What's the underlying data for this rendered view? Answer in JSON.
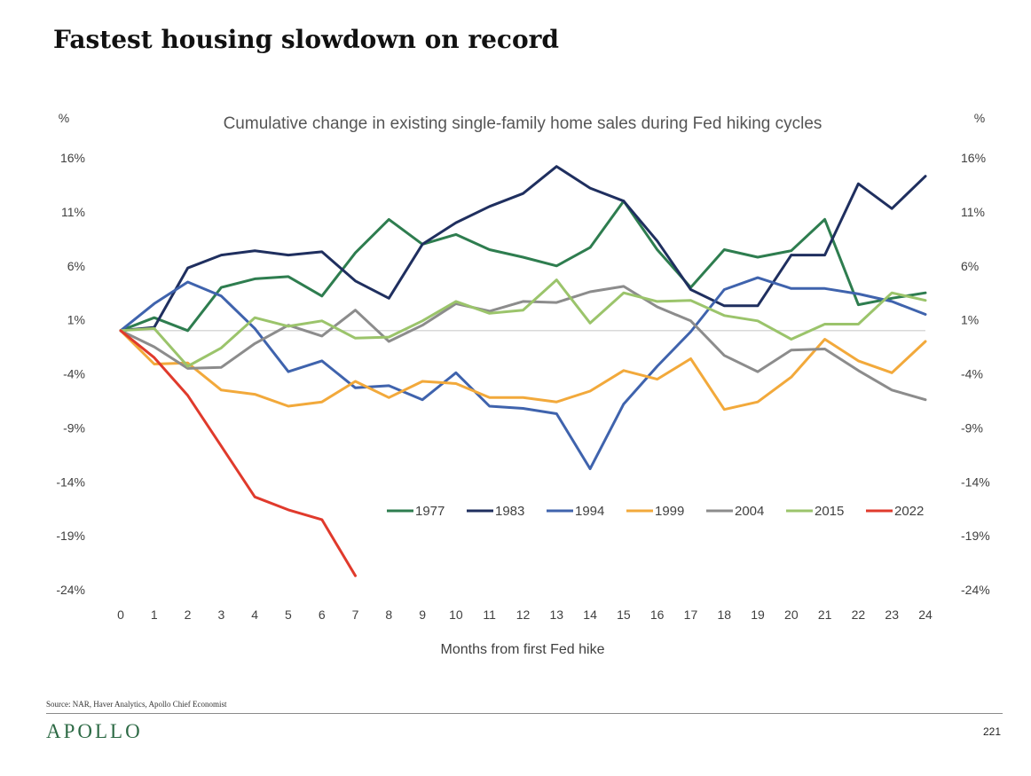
{
  "slide": {
    "title": "Fastest housing slowdown on record",
    "source": "Source: NAR, Haver Analytics, Apollo Chief Economist",
    "brand": "APOLLO",
    "page_number": "221"
  },
  "colors": {
    "brand": "#2d6a45",
    "zero_line": "#d9d9d9",
    "axis_text": "#404040"
  },
  "chart_data": {
    "type": "line",
    "title": "Cumulative change in existing single-family home sales during Fed hiking cycles",
    "xlabel": "Months from first Fed hike",
    "ylabel_left": "%",
    "ylabel_right": "%",
    "x": [
      0,
      1,
      2,
      3,
      4,
      5,
      6,
      7,
      8,
      9,
      10,
      11,
      12,
      13,
      14,
      15,
      16,
      17,
      18,
      19,
      20,
      21,
      22,
      23,
      24
    ],
    "yticks": [
      16,
      11,
      6,
      1,
      -4,
      -9,
      -14,
      -19,
      -24
    ],
    "ytick_labels": [
      "16%",
      "11%",
      "6%",
      "1%",
      "-4%",
      "-9%",
      "-14%",
      "-19%",
      "-24%"
    ],
    "ylim": [
      -24,
      16
    ],
    "grid": false,
    "zero_line": true,
    "legend_position": "lower-right",
    "series": [
      {
        "name": "1977",
        "color": "#2e7d4f",
        "values": [
          0,
          1.2,
          0,
          4,
          4.8,
          5,
          3.2,
          7.2,
          10.3,
          8,
          8.9,
          7.5,
          6.8,
          6,
          7.7,
          12,
          7.5,
          4,
          7.5,
          6.8,
          7.4,
          10.3,
          2.4,
          3,
          3.5
        ]
      },
      {
        "name": "1983",
        "color": "#1f2f5f",
        "values": [
          0,
          0.3,
          5.8,
          7,
          7.4,
          7,
          7.3,
          4.6,
          3,
          8,
          10,
          11.5,
          12.7,
          15.2,
          13.2,
          12,
          8.3,
          3.8,
          2.3,
          2.3,
          7,
          7,
          13.6,
          11.3,
          14.3
        ]
      },
      {
        "name": "1994",
        "color": "#3f63ad",
        "values": [
          0,
          2.5,
          4.5,
          3.2,
          0.2,
          -3.8,
          -2.8,
          -5.3,
          -5.1,
          -6.4,
          -3.9,
          -7,
          -7.2,
          -7.7,
          -12.8,
          -6.8,
          -3.3,
          -0.1,
          3.8,
          4.9,
          3.9,
          3.9,
          3.4,
          2.7,
          1.5
        ]
      },
      {
        "name": "1999",
        "color": "#f2a93b",
        "values": [
          0,
          -3.1,
          -3,
          -5.5,
          -5.9,
          -7,
          -6.6,
          -4.7,
          -6.2,
          -4.7,
          -4.9,
          -6.2,
          -6.2,
          -6.6,
          -5.6,
          -3.7,
          -4.5,
          -2.6,
          -7.3,
          -6.6,
          -4.3,
          -0.8,
          -2.8,
          -3.9,
          -1
        ]
      },
      {
        "name": "2004",
        "color": "#8c8c8c",
        "values": [
          0,
          -1.5,
          -3.5,
          -3.4,
          -1.2,
          0.5,
          -0.5,
          1.9,
          -1,
          0.5,
          2.5,
          1.8,
          2.7,
          2.6,
          3.6,
          4.1,
          2.2,
          0.9,
          -2.3,
          -3.8,
          -1.8,
          -1.7,
          -3.7,
          -5.5,
          -6.4
        ]
      },
      {
        "name": "2015",
        "color": "#9bc46b",
        "values": [
          0,
          0.2,
          -3.3,
          -1.6,
          1.2,
          0.4,
          0.9,
          -0.7,
          -0.6,
          0.9,
          2.7,
          1.6,
          1.9,
          4.7,
          0.7,
          3.5,
          2.7,
          2.8,
          1.4,
          0.9,
          -0.8,
          0.6,
          0.6,
          3.5,
          2.8
        ]
      },
      {
        "name": "2022",
        "color": "#e03a2c",
        "values": [
          0,
          -2.5,
          -6,
          -10.7,
          -15.4,
          -16.6,
          -17.5,
          -22.7,
          null,
          null,
          null,
          null,
          null,
          null,
          null,
          null,
          null,
          null,
          null,
          null,
          null,
          null,
          null,
          null,
          null
        ]
      }
    ]
  }
}
